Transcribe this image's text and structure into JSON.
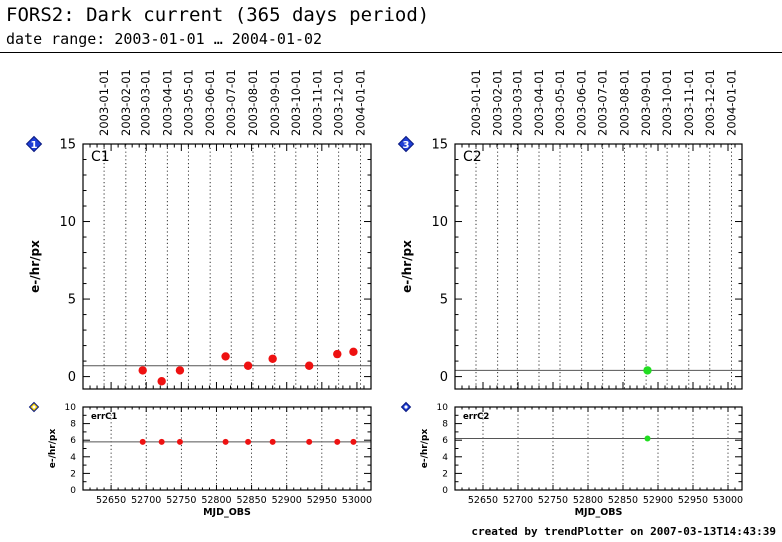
{
  "header": {
    "title": "FORS2: Dark current (365 days period)",
    "subtitle": "date range: 2003-01-01 … 2004-01-02"
  },
  "footer": {
    "text": "created by trendPlotter on 2007-03-13T14:43:39"
  },
  "chart_data": [
    {
      "type": "scatter",
      "badge": "1",
      "badge_color": "#1f3fd6",
      "panel_label": "C1",
      "ylabel": "e-/hr/px",
      "xlim": [
        52610,
        53020
      ],
      "ylim": [
        -0.8,
        15
      ],
      "yticks": [
        0,
        5,
        10,
        15
      ],
      "date_ticks": [
        {
          "label": "2003-01-01",
          "mjd": 52640
        },
        {
          "label": "2003-02-01",
          "mjd": 52671
        },
        {
          "label": "2003-03-01",
          "mjd": 52699
        },
        {
          "label": "2003-04-01",
          "mjd": 52730
        },
        {
          "label": "2003-05-01",
          "mjd": 52760
        },
        {
          "label": "2003-06-01",
          "mjd": 52791
        },
        {
          "label": "2003-07-01",
          "mjd": 52821
        },
        {
          "label": "2003-08-01",
          "mjd": 52852
        },
        {
          "label": "2003-09-01",
          "mjd": 52883
        },
        {
          "label": "2003-10-01",
          "mjd": 52913
        },
        {
          "label": "2003-11-01",
          "mjd": 52944
        },
        {
          "label": "2003-12-01",
          "mjd": 52974
        },
        {
          "label": "2004-01-01",
          "mjd": 53005
        }
      ],
      "reference_line": 0.7,
      "point_color": "#ee1111",
      "points": [
        {
          "x": 52695,
          "y": 0.4
        },
        {
          "x": 52722,
          "y": -0.3
        },
        {
          "x": 52748,
          "y": 0.4
        },
        {
          "x": 52813,
          "y": 1.3
        },
        {
          "x": 52845,
          "y": 0.7
        },
        {
          "x": 52880,
          "y": 1.15
        },
        {
          "x": 52932,
          "y": 0.7
        },
        {
          "x": 52972,
          "y": 1.45
        },
        {
          "x": 52995,
          "y": 1.6
        }
      ]
    },
    {
      "type": "scatter",
      "badge": "3",
      "badge_color": "#1f3fd6",
      "panel_label": "C2",
      "ylabel": "e-/hr/px",
      "xlim": [
        52610,
        53020
      ],
      "ylim": [
        -0.8,
        15
      ],
      "yticks": [
        0,
        5,
        10,
        15
      ],
      "date_ticks": [
        {
          "label": "2003-01-01",
          "mjd": 52640
        },
        {
          "label": "2003-02-01",
          "mjd": 52671
        },
        {
          "label": "2003-03-01",
          "mjd": 52699
        },
        {
          "label": "2003-04-01",
          "mjd": 52730
        },
        {
          "label": "2003-05-01",
          "mjd": 52760
        },
        {
          "label": "2003-06-01",
          "mjd": 52791
        },
        {
          "label": "2003-07-01",
          "mjd": 52821
        },
        {
          "label": "2003-08-01",
          "mjd": 52852
        },
        {
          "label": "2003-09-01",
          "mjd": 52883
        },
        {
          "label": "2003-10-01",
          "mjd": 52913
        },
        {
          "label": "2003-11-01",
          "mjd": 52944
        },
        {
          "label": "2003-12-01",
          "mjd": 52974
        },
        {
          "label": "2004-01-01",
          "mjd": 53005
        }
      ],
      "reference_line": 0.4,
      "point_color": "#22dd22",
      "points": [
        {
          "x": 52885,
          "y": 0.4
        }
      ]
    },
    {
      "type": "scatter",
      "badge": "",
      "badge_color": "#e8c400",
      "panel_label": "errC1",
      "ylabel": "e-/hr/px",
      "xlabel": "MJD_OBS",
      "xlim": [
        52610,
        53020
      ],
      "xticks": [
        52650,
        52700,
        52750,
        52800,
        52850,
        52900,
        52950,
        53000
      ],
      "ylim": [
        0,
        10
      ],
      "yticks": [
        0,
        2,
        4,
        6,
        8,
        10
      ],
      "reference_line": 5.8,
      "point_color": "#ee1111",
      "points": [
        {
          "x": 52695,
          "y": 5.8
        },
        {
          "x": 52722,
          "y": 5.8
        },
        {
          "x": 52748,
          "y": 5.8
        },
        {
          "x": 52813,
          "y": 5.8
        },
        {
          "x": 52845,
          "y": 5.8
        },
        {
          "x": 52880,
          "y": 5.8
        },
        {
          "x": 52932,
          "y": 5.8
        },
        {
          "x": 52972,
          "y": 5.8
        },
        {
          "x": 52995,
          "y": 5.8
        }
      ]
    },
    {
      "type": "scatter",
      "badge": "",
      "badge_color": "#1f3fd6",
      "panel_label": "errC2",
      "ylabel": "e-/hr/px",
      "xlabel": "MJD_OBS",
      "xlim": [
        52610,
        53020
      ],
      "xticks": [
        52650,
        52700,
        52750,
        52800,
        52850,
        52900,
        52950,
        53000
      ],
      "ylim": [
        0,
        10
      ],
      "yticks": [
        0,
        2,
        4,
        6,
        8,
        10
      ],
      "reference_line": 6.2,
      "point_color": "#22dd22",
      "points": [
        {
          "x": 52885,
          "y": 6.2
        }
      ]
    }
  ]
}
